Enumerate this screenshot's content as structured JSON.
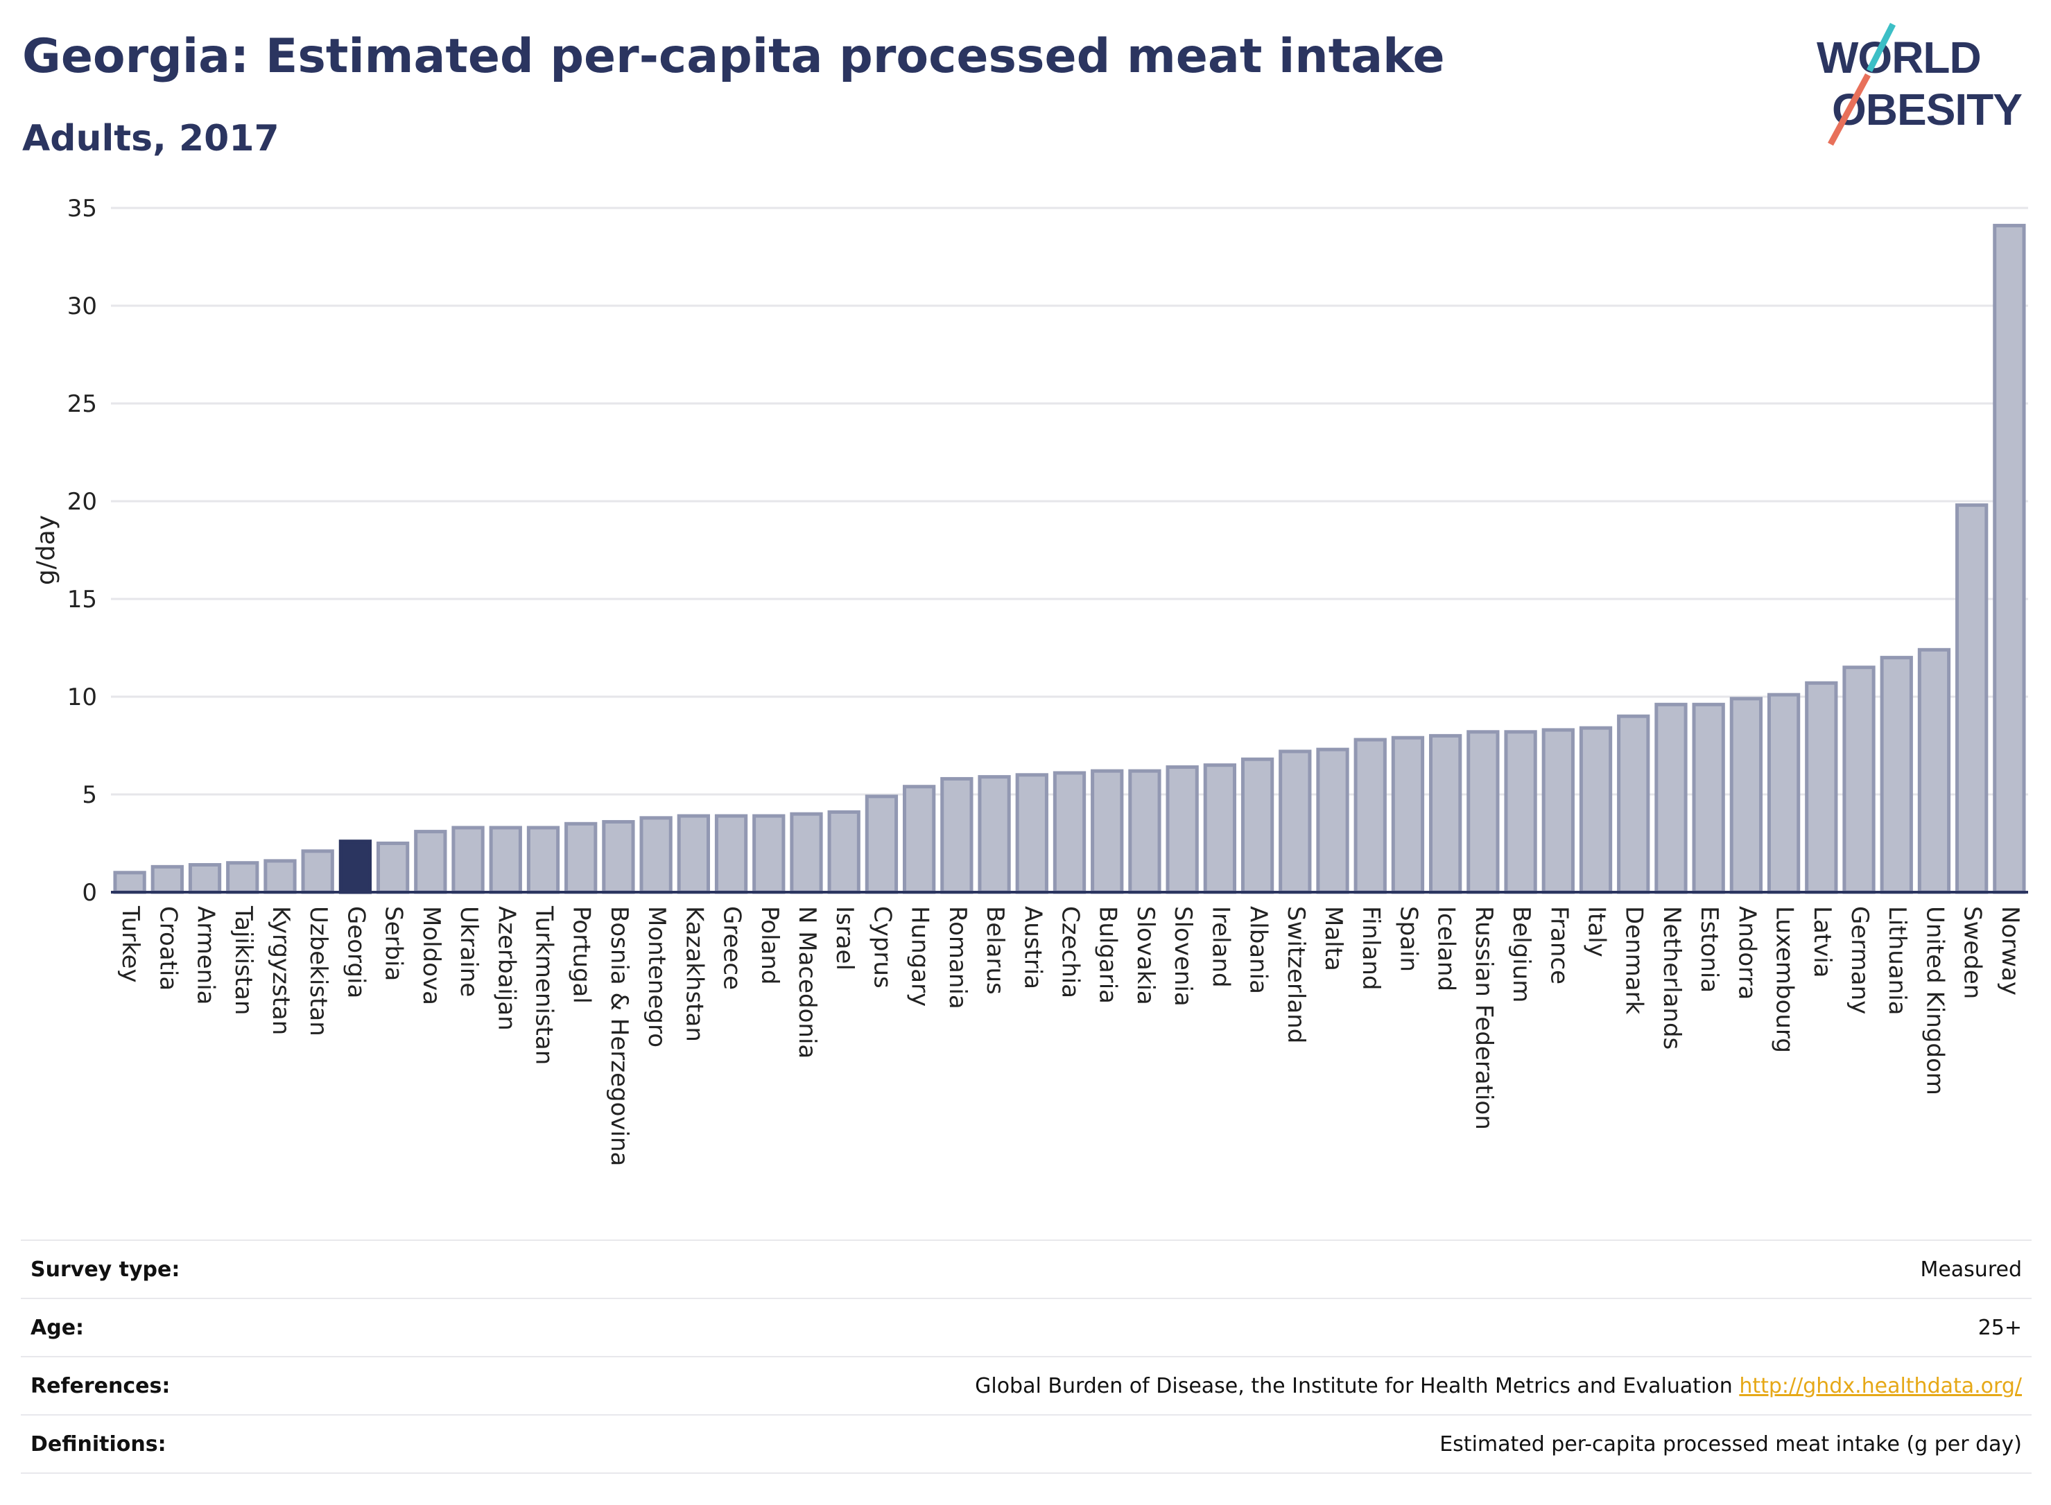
{
  "header": {
    "title": "Georgia: Estimated per-capita processed meat intake",
    "subtitle": "Adults, 2017"
  },
  "logo": {
    "line1": "WORLD",
    "line2": "OBESITY",
    "colors": {
      "navy": "#2b3560",
      "teal": "#3cbfc6",
      "coral": "#e8705a"
    }
  },
  "chart_data": {
    "type": "bar",
    "title": "Georgia: Estimated per-capita processed meat intake",
    "subtitle": "Adults, 2017",
    "xlabel": "",
    "ylabel": "g/day",
    "ylim": [
      0,
      35
    ],
    "yticks": [
      0,
      5,
      10,
      15,
      20,
      25,
      30,
      35
    ],
    "grid": true,
    "highlight": "Georgia",
    "colors": {
      "bar": "#b9bdcc",
      "bar_stroke": "#9298b2",
      "highlight": "#2b3560",
      "axis": "#2b3560",
      "grid": "#e6e6ea"
    },
    "categories": [
      "Turkey",
      "Croatia",
      "Armenia",
      "Tajikistan",
      "Kyrgyzstan",
      "Uzbekistan",
      "Georgia",
      "Serbia",
      "Moldova",
      "Ukraine",
      "Azerbaijan",
      "Turkmenistan",
      "Portugal",
      "Bosnia & Herzegovina",
      "Montenegro",
      "Kazakhstan",
      "Greece",
      "Poland",
      "N Macedonia",
      "Israel",
      "Cyprus",
      "Hungary",
      "Romania",
      "Belarus",
      "Austria",
      "Czechia",
      "Bulgaria",
      "Slovakia",
      "Slovenia",
      "Ireland",
      "Albania",
      "Switzerland",
      "Malta",
      "Finland",
      "Spain",
      "Iceland",
      "Russian Federation",
      "Belgium",
      "France",
      "Italy",
      "Denmark",
      "Netherlands",
      "Estonia",
      "Andorra",
      "Luxembourg",
      "Latvia",
      "Germany",
      "Lithuania",
      "United Kingdom",
      "Sweden",
      "Norway"
    ],
    "values": [
      1.0,
      1.3,
      1.4,
      1.5,
      1.6,
      2.1,
      2.6,
      2.5,
      3.1,
      3.3,
      3.3,
      3.3,
      3.5,
      3.6,
      3.8,
      3.9,
      3.9,
      3.9,
      4.0,
      4.1,
      4.9,
      5.4,
      5.8,
      5.9,
      6.0,
      6.1,
      6.2,
      6.2,
      6.4,
      6.5,
      6.8,
      7.2,
      7.3,
      7.8,
      7.9,
      8.0,
      8.2,
      8.2,
      8.3,
      8.4,
      9.0,
      9.6,
      9.6,
      9.9,
      10.1,
      10.7,
      11.5,
      12.0,
      12.4,
      19.8,
      34.1
    ]
  },
  "info": {
    "survey_type_label": "Survey type:",
    "survey_type_value": "Measured",
    "age_label": "Age:",
    "age_value": "25+",
    "references_label": "References:",
    "references_text": "Global Burden of Disease, the Institute for Health Metrics and Evaluation",
    "references_link": "http://ghdx.healthdata.org/",
    "definitions_label": "Definitions:",
    "definitions_value": "Estimated per-capita processed meat intake (g per day)"
  }
}
